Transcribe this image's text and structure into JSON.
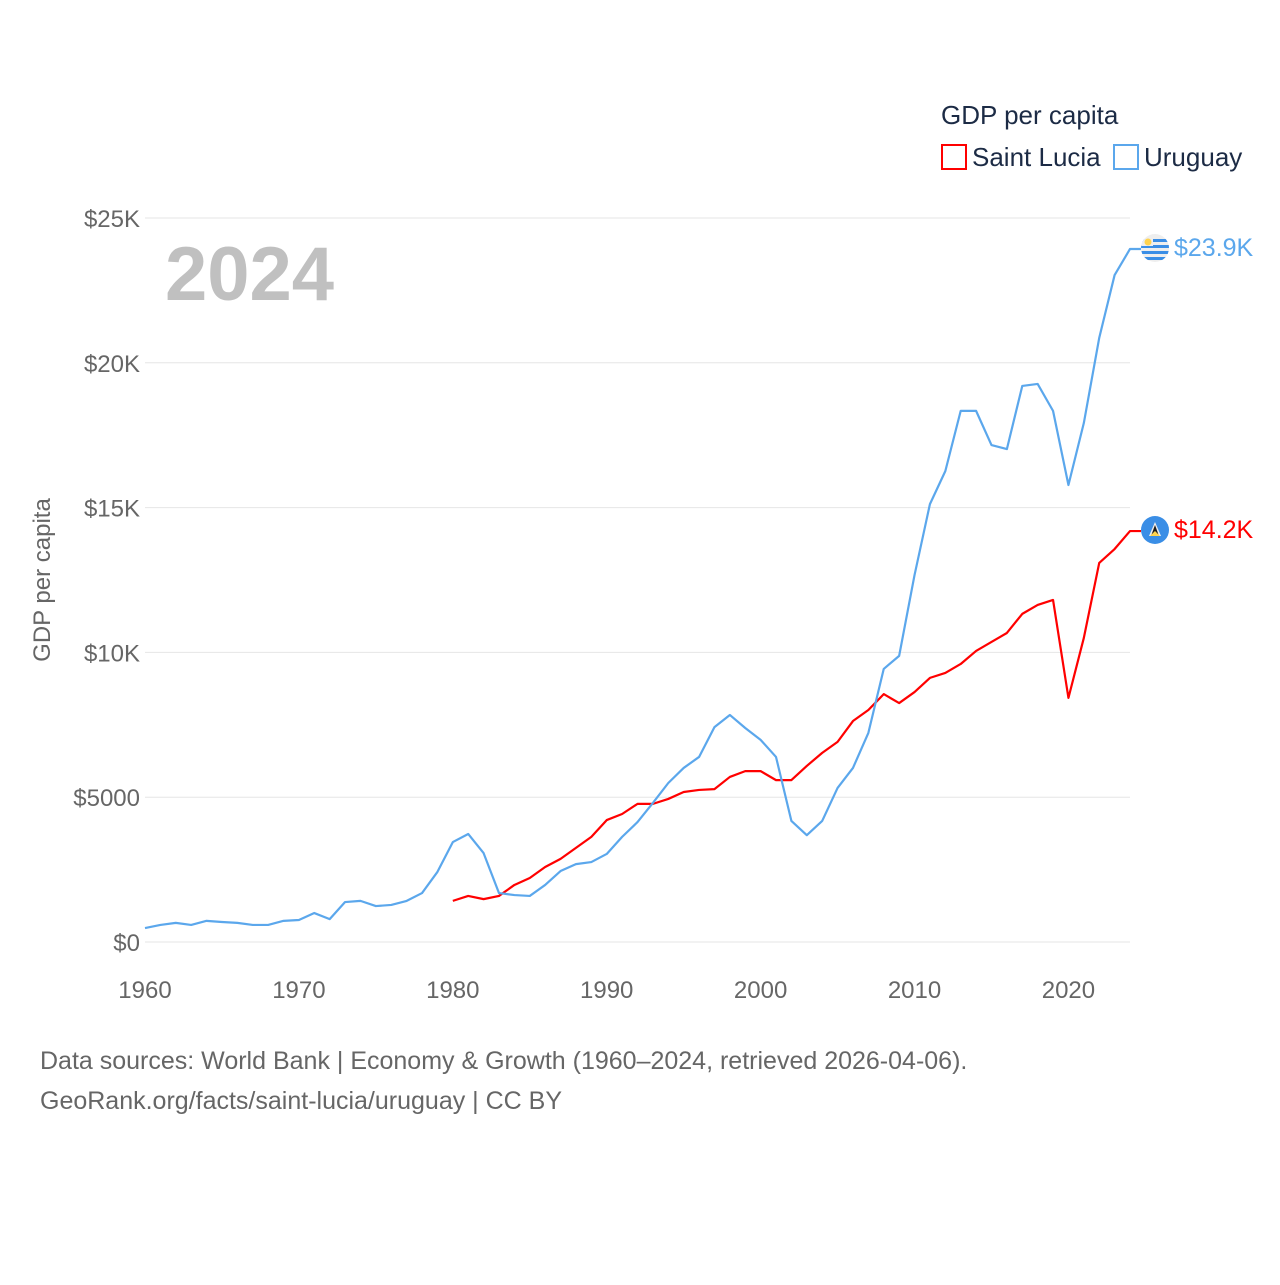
{
  "chart_data": {
    "type": "line",
    "title": "GDP per capita",
    "ylabel": "GDP per capita",
    "xlabel": "",
    "year_label": "2024",
    "xlim": [
      1960,
      2024
    ],
    "ylim": [
      0,
      25000
    ],
    "x_ticks": [
      1960,
      1970,
      1980,
      1990,
      2000,
      2010,
      2020
    ],
    "x_tick_labels": [
      "1960",
      "1970",
      "1980",
      "1990",
      "2000",
      "2010",
      "2020"
    ],
    "y_ticks": [
      0,
      5000,
      10000,
      15000,
      20000,
      25000
    ],
    "y_tick_labels": [
      "$0",
      "$5000",
      "$10K",
      "$15K",
      "$20K",
      "$25K"
    ],
    "grid": true,
    "legend_placement": "top-right",
    "series": [
      {
        "name": "Saint Lucia",
        "color": "#ff0000",
        "end_label": "$14.2K",
        "flag": "saint-lucia-flag-icon",
        "x": [
          1980,
          1981,
          1982,
          1983,
          1984,
          1985,
          1986,
          1987,
          1988,
          1989,
          1990,
          1991,
          1992,
          1993,
          1994,
          1995,
          1996,
          1997,
          1998,
          1999,
          2000,
          2001,
          2002,
          2003,
          2004,
          2005,
          2006,
          2007,
          2008,
          2009,
          2010,
          2011,
          2012,
          2013,
          2014,
          2015,
          2016,
          2017,
          2018,
          2019,
          2020,
          2021,
          2022,
          2023,
          2024
        ],
        "values": [
          1420,
          1590,
          1480,
          1590,
          1970,
          2210,
          2590,
          2870,
          3250,
          3630,
          4210,
          4420,
          4770,
          4770,
          4940,
          5180,
          5250,
          5280,
          5700,
          5900,
          5900,
          5590,
          5590,
          6080,
          6530,
          6910,
          7630,
          8010,
          8560,
          8250,
          8630,
          9120,
          9290,
          9600,
          10050,
          10360,
          10670,
          11330,
          11640,
          11810,
          8430,
          10500,
          13090,
          13570,
          14190
        ]
      },
      {
        "name": "Uruguay",
        "color": "#5ba7ec",
        "end_label": "$23.9K",
        "flag": "uruguay-flag-icon",
        "x": [
          1960,
          1961,
          1962,
          1963,
          1964,
          1965,
          1966,
          1967,
          1968,
          1969,
          1970,
          1971,
          1972,
          1973,
          1974,
          1975,
          1976,
          1977,
          1978,
          1979,
          1980,
          1981,
          1982,
          1983,
          1984,
          1985,
          1986,
          1987,
          1988,
          1989,
          1990,
          1991,
          1992,
          1993,
          1994,
          1995,
          1996,
          1997,
          1998,
          1999,
          2000,
          2001,
          2002,
          2003,
          2004,
          2005,
          2006,
          2007,
          2008,
          2009,
          2010,
          2011,
          2012,
          2013,
          2014,
          2015,
          2016,
          2017,
          2018,
          2019,
          2020,
          2021,
          2022,
          2023,
          2024
        ],
        "values": [
          480,
          590,
          660,
          590,
          730,
          690,
          660,
          590,
          590,
          730,
          760,
          1000,
          790,
          1380,
          1420,
          1240,
          1280,
          1420,
          1690,
          2420,
          3450,
          3730,
          3070,
          1690,
          1620,
          1590,
          1970,
          2450,
          2690,
          2760,
          3040,
          3630,
          4140,
          4800,
          5490,
          6010,
          6390,
          7420,
          7840,
          7390,
          6980,
          6390,
          4180,
          3690,
          4180,
          5320,
          6010,
          7220,
          9430,
          9880,
          12670,
          15120,
          16260,
          18340,
          18340,
          17160,
          17020,
          19200,
          19270,
          18340,
          15780,
          17920,
          20860,
          23030,
          23930
        ]
      }
    ]
  },
  "footer": {
    "line1": "Data sources: World Bank | Economy & Growth (1960–2024, retrieved 2026-04-06).",
    "line2": "GeoRank.org/facts/saint-lucia/uruguay | CC BY"
  }
}
